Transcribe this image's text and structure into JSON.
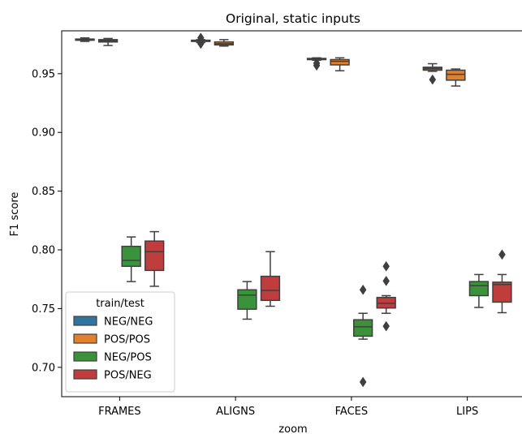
{
  "chart_data": {
    "type": "box",
    "title": "Original, static inputs",
    "xlabel": "zoom",
    "ylabel": "F1 score",
    "ylim": [
      0.675,
      0.9865
    ],
    "yticks": [
      0.7,
      0.75,
      0.8,
      0.85,
      0.9,
      0.95
    ],
    "ytick_labels": [
      "0.70",
      "0.75",
      "0.80",
      "0.85",
      "0.90",
      "0.95"
    ],
    "categories": [
      "FRAMES",
      "ALIGNS",
      "FACES",
      "LIPS"
    ],
    "legend": {
      "title": "train/test",
      "position": "lower left"
    },
    "series": [
      {
        "name": "NEG/NEG",
        "color": "#3274a1",
        "boxes": [
          {
            "whislo": 0.9775,
            "q1": 0.9785,
            "med": 0.979,
            "q3": 0.9795,
            "whishi": 0.9805,
            "fliers": []
          },
          {
            "whislo": 0.9765,
            "q1": 0.9775,
            "med": 0.978,
            "q3": 0.9785,
            "whishi": 0.979,
            "fliers": [
              0.9755,
              0.9805
            ]
          },
          {
            "whislo": 0.9615,
            "q1": 0.962,
            "med": 0.9625,
            "q3": 0.963,
            "whishi": 0.9635,
            "fliers": [
              0.957,
              0.959
            ]
          },
          {
            "whislo": 0.952,
            "q1": 0.953,
            "med": 0.9545,
            "q3": 0.9555,
            "whishi": 0.9585,
            "fliers": [
              0.945
            ]
          }
        ]
      },
      {
        "name": "POS/POS",
        "color": "#e1812c",
        "boxes": [
          {
            "whislo": 0.974,
            "q1": 0.977,
            "med": 0.978,
            "q3": 0.979,
            "whishi": 0.98,
            "fliers": []
          },
          {
            "whislo": 0.9735,
            "q1": 0.9745,
            "med": 0.9755,
            "q3": 0.977,
            "whishi": 0.979,
            "fliers": []
          },
          {
            "whislo": 0.9525,
            "q1": 0.9575,
            "med": 0.9605,
            "q3": 0.962,
            "whishi": 0.9635,
            "fliers": []
          },
          {
            "whislo": 0.9395,
            "q1": 0.9445,
            "med": 0.9495,
            "q3": 0.953,
            "whishi": 0.954,
            "fliers": []
          }
        ]
      },
      {
        "name": "NEG/POS",
        "color": "#3a923a",
        "boxes": [
          {
            "whislo": 0.773,
            "q1": 0.786,
            "med": 0.791,
            "q3": 0.803,
            "whishi": 0.811,
            "fliers": []
          },
          {
            "whislo": 0.741,
            "q1": 0.7495,
            "med": 0.7615,
            "q3": 0.766,
            "whishi": 0.773,
            "fliers": []
          },
          {
            "whislo": 0.724,
            "q1": 0.7265,
            "med": 0.7345,
            "q3": 0.7405,
            "whishi": 0.746,
            "fliers": [
              0.6875,
              0.766
            ]
          },
          {
            "whislo": 0.751,
            "q1": 0.761,
            "med": 0.7695,
            "q3": 0.773,
            "whishi": 0.779,
            "fliers": []
          }
        ]
      },
      {
        "name": "POS/NEG",
        "color": "#c03d3e",
        "boxes": [
          {
            "whislo": 0.769,
            "q1": 0.7825,
            "med": 0.7985,
            "q3": 0.8075,
            "whishi": 0.8155,
            "fliers": []
          },
          {
            "whislo": 0.752,
            "q1": 0.757,
            "med": 0.7655,
            "q3": 0.7775,
            "whishi": 0.7985,
            "fliers": []
          },
          {
            "whislo": 0.746,
            "q1": 0.7505,
            "med": 0.7545,
            "q3": 0.7595,
            "whishi": 0.761,
            "fliers": [
              0.735,
              0.7735,
              0.786
            ]
          },
          {
            "whislo": 0.7465,
            "q1": 0.7555,
            "med": 0.7705,
            "q3": 0.7725,
            "whishi": 0.779,
            "fliers": [
              0.796
            ]
          }
        ]
      }
    ]
  }
}
